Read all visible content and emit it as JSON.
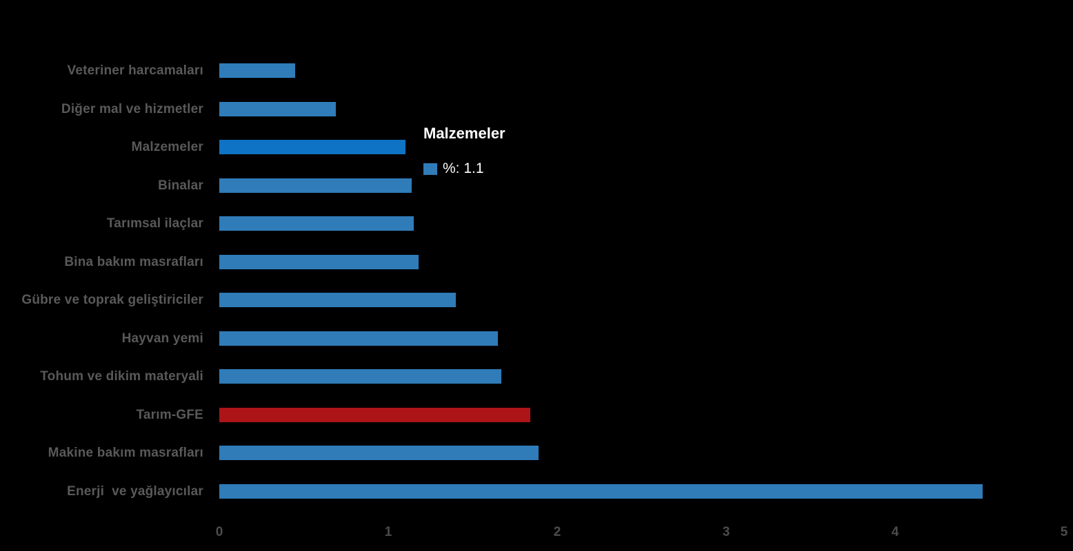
{
  "background": "#000000",
  "chart_data": {
    "type": "bar",
    "orientation": "horizontal",
    "title": "",
    "xlabel": "",
    "ylabel": "",
    "categories": [
      "Veteriner harcamaları",
      "Diğer mal ve hizmetler",
      "Malzemeler",
      "Binalar",
      "Tarımsal ilaçlar",
      "Bina bakım masrafları",
      "Gübre ve toprak geliştiriciler",
      "Hayvan yemi",
      "Tohum ve dikim materyali",
      "Tarım-GFE",
      "Makine bakım masrafları",
      "Enerji  ve yağlayıcılar"
    ],
    "values": [
      0.45,
      0.69,
      1.1,
      1.14,
      1.15,
      1.18,
      1.4,
      1.65,
      1.67,
      1.84,
      1.89,
      4.52
    ],
    "series_name": "%",
    "highlight_index": 2,
    "emphasis_index": 9,
    "bar_colors": {
      "default": "#2F7CB9",
      "highlight": "#0E73C4",
      "emphasis": "#AC1418"
    },
    "xlim": [
      0,
      5
    ],
    "x_ticks": [
      "0",
      "1",
      "2",
      "3",
      "4",
      "5"
    ],
    "grid": false,
    "legend_position": "none",
    "label_color": "#595959",
    "tick_color": "#4c4c4c"
  },
  "tooltip": {
    "title": "Malzemeler",
    "series_label": "%",
    "value": "1.1",
    "text": "%: 1.1",
    "swatch_color": "#2F7CB9",
    "text_color": "#ffffff"
  }
}
